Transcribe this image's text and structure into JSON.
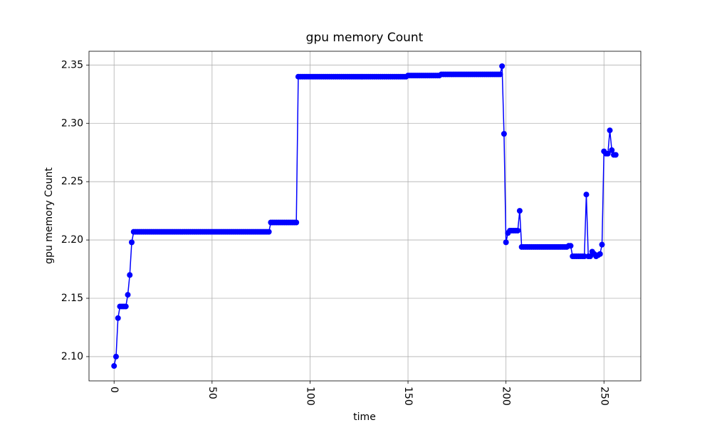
{
  "chart_data": {
    "type": "line",
    "title": "gpu memory Count",
    "x_label": "time",
    "y_label": "gpu memory Count",
    "color": "#0000ff",
    "grid": true,
    "marker": "o",
    "xlim": [
      -12.8,
      268.8
    ],
    "xticks": [
      0,
      50,
      100,
      150,
      200,
      250
    ],
    "ylim": [
      2.0792,
      2.3618
    ],
    "yticks": [
      {
        "value": 2.1,
        "label": "2.10"
      },
      {
        "value": 2.15,
        "label": "2.15"
      },
      {
        "value": 2.2,
        "label": "2.20"
      },
      {
        "value": 2.25,
        "label": "2.25"
      },
      {
        "value": 2.3,
        "label": "2.30"
      },
      {
        "value": 2.35,
        "label": "2.35"
      }
    ],
    "x": [
      0,
      1,
      2,
      3,
      4,
      5,
      6,
      7,
      8,
      9,
      10,
      11,
      12,
      13,
      14,
      15,
      16,
      17,
      18,
      19,
      20,
      21,
      22,
      23,
      24,
      25,
      26,
      27,
      28,
      29,
      30,
      31,
      32,
      33,
      34,
      35,
      36,
      37,
      38,
      39,
      40,
      41,
      42,
      43,
      44,
      45,
      46,
      47,
      48,
      49,
      50,
      51,
      52,
      53,
      54,
      55,
      56,
      57,
      58,
      59,
      60,
      61,
      62,
      63,
      64,
      65,
      66,
      67,
      68,
      69,
      70,
      71,
      72,
      73,
      74,
      75,
      76,
      77,
      78,
      79,
      80,
      81,
      82,
      83,
      84,
      85,
      86,
      87,
      88,
      89,
      90,
      91,
      92,
      93,
      94,
      95,
      96,
      97,
      98,
      99,
      100,
      101,
      102,
      103,
      104,
      105,
      106,
      107,
      108,
      109,
      110,
      111,
      112,
      113,
      114,
      115,
      116,
      117,
      118,
      119,
      120,
      121,
      122,
      123,
      124,
      125,
      126,
      127,
      128,
      129,
      130,
      131,
      132,
      133,
      134,
      135,
      136,
      137,
      138,
      139,
      140,
      141,
      142,
      143,
      144,
      145,
      146,
      147,
      148,
      149,
      150,
      151,
      152,
      153,
      154,
      155,
      156,
      157,
      158,
      159,
      160,
      161,
      162,
      163,
      164,
      165,
      166,
      167,
      168,
      169,
      170,
      171,
      172,
      173,
      174,
      175,
      176,
      177,
      178,
      179,
      180,
      181,
      182,
      183,
      184,
      185,
      186,
      187,
      188,
      189,
      190,
      191,
      192,
      193,
      194,
      195,
      196,
      197,
      198,
      199,
      200,
      201,
      202,
      203,
      204,
      205,
      206,
      207,
      208,
      209,
      210,
      211,
      212,
      213,
      214,
      215,
      216,
      217,
      218,
      219,
      220,
      221,
      222,
      223,
      224,
      225,
      226,
      227,
      228,
      229,
      230,
      231,
      232,
      233,
      234,
      235,
      236,
      237,
      238,
      239,
      240,
      241,
      242,
      243,
      244,
      245,
      246,
      247,
      248,
      249,
      250,
      251,
      252,
      253,
      254,
      255,
      256
    ],
    "values": [
      2.092,
      2.1,
      2.133,
      2.143,
      2.143,
      2.143,
      2.143,
      2.153,
      2.17,
      2.198,
      2.207,
      2.207,
      2.207,
      2.207,
      2.207,
      2.207,
      2.207,
      2.207,
      2.207,
      2.207,
      2.207,
      2.207,
      2.207,
      2.207,
      2.207,
      2.207,
      2.207,
      2.207,
      2.207,
      2.207,
      2.207,
      2.207,
      2.207,
      2.207,
      2.207,
      2.207,
      2.207,
      2.207,
      2.207,
      2.207,
      2.207,
      2.207,
      2.207,
      2.207,
      2.207,
      2.207,
      2.207,
      2.207,
      2.207,
      2.207,
      2.207,
      2.207,
      2.207,
      2.207,
      2.207,
      2.207,
      2.207,
      2.207,
      2.207,
      2.207,
      2.207,
      2.207,
      2.207,
      2.207,
      2.207,
      2.207,
      2.207,
      2.207,
      2.207,
      2.207,
      2.207,
      2.207,
      2.207,
      2.207,
      2.207,
      2.207,
      2.207,
      2.207,
      2.207,
      2.207,
      2.215,
      2.215,
      2.215,
      2.215,
      2.215,
      2.215,
      2.215,
      2.215,
      2.215,
      2.215,
      2.215,
      2.215,
      2.215,
      2.215,
      2.34,
      2.34,
      2.34,
      2.34,
      2.34,
      2.34,
      2.34,
      2.34,
      2.34,
      2.34,
      2.34,
      2.34,
      2.34,
      2.34,
      2.34,
      2.34,
      2.34,
      2.34,
      2.34,
      2.34,
      2.34,
      2.34,
      2.34,
      2.34,
      2.34,
      2.34,
      2.34,
      2.34,
      2.34,
      2.34,
      2.34,
      2.34,
      2.34,
      2.34,
      2.34,
      2.34,
      2.34,
      2.34,
      2.34,
      2.34,
      2.34,
      2.34,
      2.34,
      2.34,
      2.34,
      2.34,
      2.34,
      2.34,
      2.34,
      2.34,
      2.34,
      2.34,
      2.34,
      2.34,
      2.34,
      2.34,
      2.341,
      2.341,
      2.341,
      2.341,
      2.341,
      2.341,
      2.341,
      2.341,
      2.341,
      2.341,
      2.341,
      2.341,
      2.341,
      2.341,
      2.341,
      2.341,
      2.341,
      2.342,
      2.342,
      2.342,
      2.342,
      2.342,
      2.342,
      2.342,
      2.342,
      2.342,
      2.342,
      2.342,
      2.342,
      2.342,
      2.342,
      2.342,
      2.342,
      2.342,
      2.342,
      2.342,
      2.342,
      2.342,
      2.342,
      2.342,
      2.342,
      2.342,
      2.342,
      2.342,
      2.342,
      2.342,
      2.342,
      2.342,
      2.349,
      2.291,
      2.198,
      2.206,
      2.208,
      2.208,
      2.208,
      2.208,
      2.208,
      2.225,
      2.194,
      2.194,
      2.194,
      2.194,
      2.194,
      2.194,
      2.194,
      2.194,
      2.194,
      2.194,
      2.194,
      2.194,
      2.194,
      2.194,
      2.194,
      2.194,
      2.194,
      2.194,
      2.194,
      2.194,
      2.194,
      2.194,
      2.194,
      2.194,
      2.195,
      2.195,
      2.186,
      2.186,
      2.186,
      2.186,
      2.186,
      2.186,
      2.186,
      2.239,
      2.186,
      2.186,
      2.19,
      2.188,
      2.186,
      2.187,
      2.188,
      2.196,
      2.276,
      2.274,
      2.274,
      2.294,
      2.277,
      2.273,
      2.273
    ]
  }
}
